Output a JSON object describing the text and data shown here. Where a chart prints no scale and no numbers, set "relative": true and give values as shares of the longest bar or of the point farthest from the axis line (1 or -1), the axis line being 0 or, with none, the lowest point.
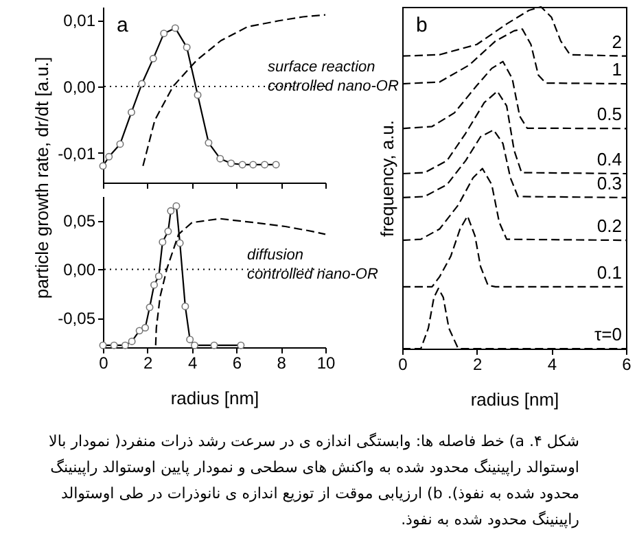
{
  "chart_data": [
    {
      "type": "line",
      "xlim": [
        0,
        10
      ],
      "xticks": [
        0,
        2,
        4,
        6,
        8,
        10
      ],
      "ylim": [
        -0.0145,
        0.012
      ],
      "yticks": [
        {
          "value": -0.01,
          "label": "-0,01"
        },
        {
          "value": 0,
          "label": "0,00"
        },
        {
          "value": 0.01,
          "label": "0,01"
        }
      ],
      "tick_labels": "y",
      "ylabel": "particle growth rate,  dr/dt [a.u.]",
      "ref_lines": [
        {
          "axis": "y",
          "value": 0,
          "line_style": "dotted",
          "color": "#000000"
        }
      ],
      "annotations": [
        "a",
        "surface reaction\ncontrolled nano-OR",
        "شکل ۴. a) خط فاصله ها: وابستگی اندازه ی در سرعت رشد ذرات منفرد( نمودار بالا اوستوالد راپینینگ محدود شده به واکنش های سطحی و نمودار پایین اوستوالد راپینینگ محدود شده به نفوذ). b) ارزیابی موقت از توزیع اندازه ی نانوذرات در طی اوستوالد راپینینگ محدود شده به نفوذ."
      ],
      "series": [
        {
          "color": "#000000",
          "marker": "circle",
          "line_style": "solid",
          "x": [
            0,
            0.27,
            0.77,
            1.28,
            1.75,
            2.26,
            2.74,
            3.25,
            3.77,
            4.26,
            4.75,
            5.27,
            5.76,
            6.27,
            6.75,
            7.27,
            7.78
          ],
          "values": [
            -0.012,
            -0.0106,
            -0.0087,
            -0.0039,
            0.0004,
            0.0042,
            0.008,
            0.0088,
            0.0059,
            -0.0013,
            -0.0085,
            -0.0109,
            -0.0116,
            -0.0118,
            -0.0118,
            -0.0118,
            -0.0118
          ]
        },
        {
          "color": "#000000",
          "marker": "none",
          "line_style": "dashed",
          "x": [
            1.8,
            2.33,
            3.15,
            4.2,
            5.3,
            6.5,
            7.9,
            9.0,
            10
          ],
          "values": [
            -0.012,
            -0.0051,
            0.0,
            0.0039,
            0.0069,
            0.009,
            0.0099,
            0.0105,
            0.0108
          ]
        }
      ]
    },
    {
      "type": "line",
      "xlim": [
        0,
        10
      ],
      "xticks": [
        0,
        2,
        4,
        6,
        8,
        10
      ],
      "ylim": [
        -0.08,
        0.075
      ],
      "yticks": [
        {
          "value": -0.05,
          "label": "-0,05"
        },
        {
          "value": 0,
          "label": "0,00"
        },
        {
          "value": 0.05,
          "label": "0,05"
        }
      ],
      "xlabel": "radius [nm]",
      "ref_lines": [
        {
          "axis": "y",
          "value": 0,
          "line_style": "dotted",
          "color": "#000000"
        }
      ],
      "annotations": [
        "diffusion\ncontrolled nano-OR"
      ],
      "series": [
        {
          "color": "#000000",
          "marker": "circle",
          "line_style": "solid",
          "x": [
            0,
            0.5,
            1.0,
            1.3,
            1.64,
            1.9,
            2.1,
            2.3,
            2.51,
            2.68,
            2.93,
            3.05,
            3.3,
            3.46,
            3.7,
            3.91,
            4.12,
            5.0,
            6.2
          ],
          "values": [
            -0.078,
            -0.078,
            -0.078,
            -0.074,
            -0.063,
            -0.06,
            -0.039,
            -0.016,
            -0.007,
            0.028,
            0.039,
            0.06,
            0.065,
            0.027,
            -0.038,
            -0.072,
            -0.078,
            -0.078,
            -0.078
          ]
        },
        {
          "color": "#000000",
          "marker": "none",
          "line_style": "dashed",
          "x": [
            2.37,
            2.4,
            2.57,
            2.88,
            3.4,
            4.0,
            5.25,
            6.8,
            8.2,
            9.4,
            10
          ],
          "values": [
            -0.078,
            -0.06,
            -0.028,
            0.001,
            0.036,
            0.048,
            0.052,
            0.048,
            0.044,
            0.039,
            0.036
          ]
        }
      ]
    },
    {
      "type": "line",
      "relative": true,
      "xlim": [
        0,
        6
      ],
      "xticks": [
        0,
        2,
        4,
        6
      ],
      "xlabel": "radius [nm]",
      "ylabel": "frequency, a.u.",
      "line_style": "dashed",
      "annotations": [
        "b"
      ],
      "series": [
        {
          "name": "τ=0",
          "color": "#000000",
          "x": [
            0,
            0.5,
            0.7,
            0.85,
            0.97,
            1.1,
            1.25,
            1.5,
            6
          ],
          "values": [
            0,
            0,
            0.06,
            0.15,
            0.176,
            0.15,
            0.06,
            0,
            0
          ]
        },
        {
          "name": "0.1",
          "color": "#000000",
          "x": [
            0,
            0.8,
            1.0,
            1.3,
            1.55,
            1.75,
            1.95,
            2.1,
            2.3,
            2.5,
            6
          ],
          "values": [
            0.181,
            0.181,
            0.21,
            0.27,
            0.35,
            0.388,
            0.33,
            0.24,
            0.185,
            0.181,
            0.181
          ]
        },
        {
          "name": "0.2",
          "color": "#000000",
          "x": [
            0,
            0.5,
            1.0,
            1.5,
            1.9,
            2.15,
            2.4,
            2.6,
            2.8,
            6
          ],
          "values": [
            0.317,
            0.32,
            0.35,
            0.42,
            0.5,
            0.527,
            0.48,
            0.37,
            0.32,
            0.317
          ]
        },
        {
          "name": "0.3",
          "color": "#000000",
          "x": [
            0,
            0.6,
            1.2,
            1.7,
            2.1,
            2.45,
            2.7,
            2.9,
            3.1,
            6
          ],
          "values": [
            0.442,
            0.445,
            0.48,
            0.55,
            0.62,
            0.64,
            0.6,
            0.5,
            0.445,
            0.442
          ]
        },
        {
          "name": "0.4",
          "color": "#000000",
          "x": [
            0,
            0.6,
            1.2,
            1.7,
            2.2,
            2.55,
            2.8,
            3.0,
            3.2,
            6
          ],
          "values": [
            0.512,
            0.515,
            0.55,
            0.63,
            0.72,
            0.753,
            0.71,
            0.58,
            0.515,
            0.512
          ]
        },
        {
          "name": "0.5",
          "color": "#000000",
          "x": [
            0,
            0.8,
            1.4,
            2.0,
            2.4,
            2.7,
            2.95,
            3.15,
            3.35,
            6
          ],
          "values": [
            0.644,
            0.65,
            0.69,
            0.77,
            0.82,
            0.84,
            0.79,
            0.68,
            0.645,
            0.644
          ]
        },
        {
          "name": "1",
          "color": "#000000",
          "x": [
            0,
            1.0,
            1.8,
            2.5,
            3.0,
            3.22,
            3.45,
            3.65,
            3.85,
            6
          ],
          "values": [
            0.775,
            0.78,
            0.83,
            0.9,
            0.93,
            0.935,
            0.89,
            0.8,
            0.777,
            0.775
          ]
        },
        {
          "name": "2",
          "color": "#000000",
          "x": [
            0,
            1.0,
            2.0,
            2.8,
            3.4,
            3.72,
            4.0,
            4.25,
            4.5,
            6
          ],
          "values": [
            0.856,
            0.86,
            0.89,
            0.95,
            0.99,
            1.0,
            0.97,
            0.9,
            0.86,
            0.856
          ]
        }
      ]
    }
  ]
}
